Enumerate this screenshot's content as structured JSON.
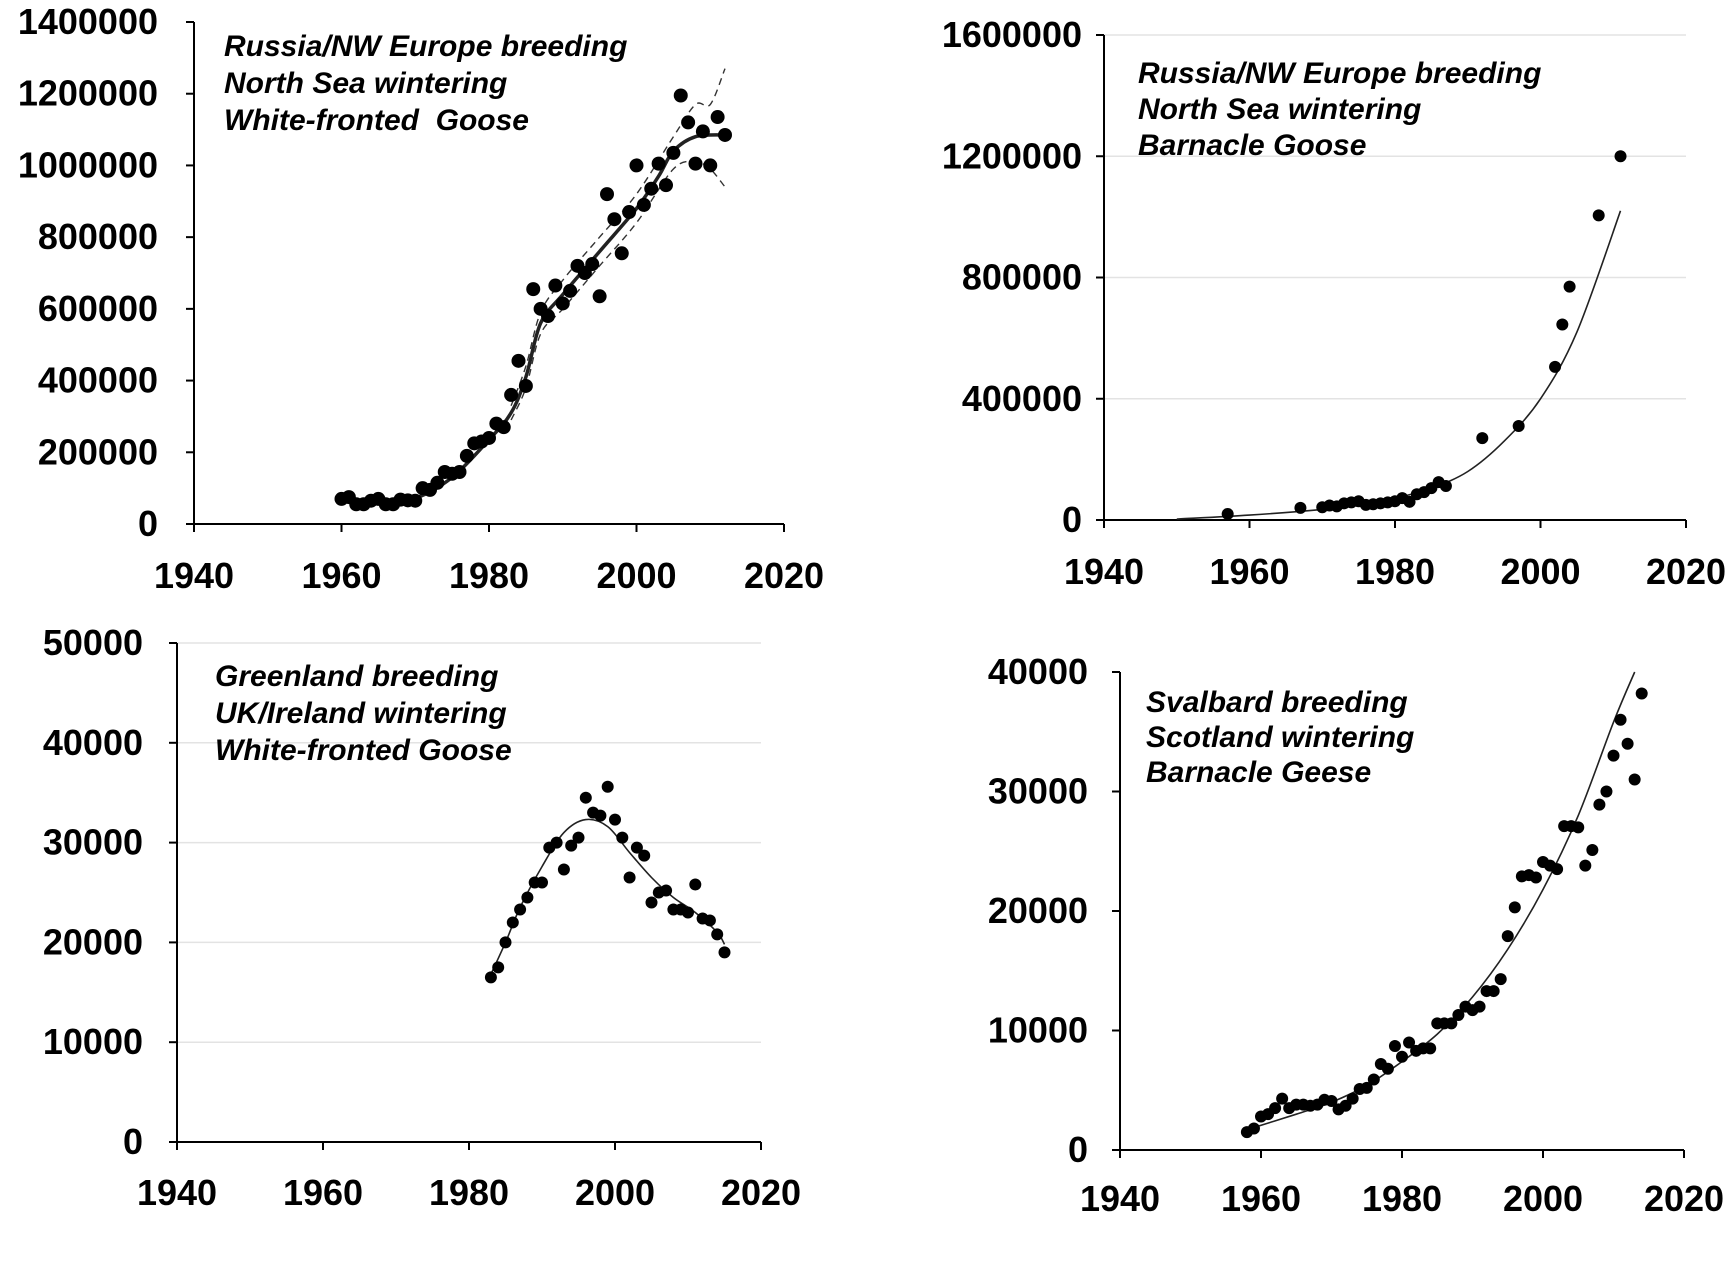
{
  "chart_data": [
    {
      "type": "scatter",
      "title": "",
      "xlabel": "",
      "ylabel": "",
      "xlim": [
        1940,
        2020
      ],
      "ylim": [
        0,
        1400000
      ],
      "x_ticks": [
        "1940",
        "1960",
        "1980",
        "2000",
        "2020"
      ],
      "y_ticks": [
        "0",
        "200000",
        "400000",
        "600000",
        "800000",
        "1000000",
        "1200000",
        "1400000"
      ],
      "grid": false,
      "annotation": [
        "Russia/NW Europe breeding",
        "North Sea wintering",
        "White-fronted  Goose"
      ],
      "series": [
        {
          "kind": "points",
          "points": [
            [
              1960,
              70000
            ],
            [
              1961,
              75000
            ],
            [
              1962,
              55000
            ],
            [
              1963,
              55000
            ],
            [
              1964,
              65000
            ],
            [
              1965,
              70000
            ],
            [
              1966,
              55000
            ],
            [
              1967,
              55000
            ],
            [
              1968,
              68000
            ],
            [
              1969,
              66000
            ],
            [
              1970,
              65000
            ],
            [
              1971,
              100000
            ],
            [
              1972,
              95000
            ],
            [
              1973,
              115000
            ],
            [
              1974,
              145000
            ],
            [
              1975,
              140000
            ],
            [
              1976,
              145000
            ],
            [
              1977,
              190000
            ],
            [
              1978,
              225000
            ],
            [
              1979,
              230000
            ],
            [
              1980,
              240000
            ],
            [
              1981,
              280000
            ],
            [
              1982,
              270000
            ],
            [
              1983,
              360000
            ],
            [
              1984,
              455000
            ],
            [
              1985,
              385000
            ],
            [
              1986,
              655000
            ],
            [
              1987,
              600000
            ],
            [
              1988,
              580000
            ],
            [
              1989,
              665000
            ],
            [
              1990,
              615000
            ],
            [
              1991,
              650000
            ],
            [
              1992,
              720000
            ],
            [
              1993,
              700000
            ],
            [
              1994,
              725000
            ],
            [
              1995,
              635000
            ],
            [
              1996,
              920000
            ],
            [
              1997,
              850000
            ],
            [
              1998,
              755000
            ],
            [
              1999,
              870000
            ],
            [
              2000,
              1000000
            ],
            [
              2001,
              890000
            ],
            [
              2002,
              935000
            ],
            [
              2003,
              1005000
            ],
            [
              2004,
              945000
            ],
            [
              2005,
              1035000
            ],
            [
              2006,
              1195000
            ],
            [
              2007,
              1120000
            ],
            [
              2008,
              1005000
            ],
            [
              2009,
              1095000
            ],
            [
              2010,
              1000000
            ],
            [
              2011,
              1135000
            ],
            [
              2012,
              1085000
            ]
          ]
        },
        {
          "kind": "trend",
          "points": [
            [
              1960,
              62000
            ],
            [
              1965,
              62000
            ],
            [
              1970,
              72000
            ],
            [
              1975,
              130000
            ],
            [
              1980,
              235000
            ],
            [
              1983,
              310000
            ],
            [
              1985,
              410000
            ],
            [
              1987,
              560000
            ],
            [
              1990,
              640000
            ],
            [
              1995,
              760000
            ],
            [
              2000,
              880000
            ],
            [
              2003,
              970000
            ],
            [
              2005,
              1040000
            ],
            [
              2008,
              1080000
            ],
            [
              2012,
              1085000
            ]
          ]
        },
        {
          "kind": "upper-ci",
          "points": [
            [
              1983,
              330000
            ],
            [
              1985,
              440000
            ],
            [
              1987,
              590000
            ],
            [
              1990,
              680000
            ],
            [
              1995,
              800000
            ],
            [
              2000,
              920000
            ],
            [
              2005,
              1080000
            ],
            [
              2008,
              1170000
            ],
            [
              2010,
              1170000
            ],
            [
              2012,
              1270000
            ]
          ]
        },
        {
          "kind": "lower-ci",
          "points": [
            [
              1983,
              290000
            ],
            [
              1985,
              380000
            ],
            [
              1987,
              530000
            ],
            [
              1990,
              600000
            ],
            [
              1995,
              720000
            ],
            [
              2000,
              840000
            ],
            [
              2005,
              990000
            ],
            [
              2008,
              1010000
            ],
            [
              2010,
              990000
            ],
            [
              2012,
              940000
            ]
          ]
        }
      ]
    },
    {
      "type": "scatter",
      "title": "",
      "xlabel": "",
      "ylabel": "",
      "xlim": [
        1940,
        2020
      ],
      "ylim": [
        0,
        1600000
      ],
      "x_ticks": [
        "1940",
        "1960",
        "1980",
        "2000",
        "2020"
      ],
      "y_ticks": [
        "0",
        "400000",
        "800000",
        "1200000",
        "1600000"
      ],
      "grid": true,
      "annotation": [
        "Russia/NW Europe breeding",
        "North Sea wintering",
        "Barnacle Goose"
      ],
      "series": [
        {
          "kind": "points",
          "points": [
            [
              1957,
              20000
            ],
            [
              1967,
              40000
            ],
            [
              1970,
              42000
            ],
            [
              1971,
              48000
            ],
            [
              1972,
              45000
            ],
            [
              1973,
              55000
            ],
            [
              1974,
              58000
            ],
            [
              1975,
              62000
            ],
            [
              1976,
              50000
            ],
            [
              1977,
              52000
            ],
            [
              1978,
              55000
            ],
            [
              1979,
              58000
            ],
            [
              1980,
              62000
            ],
            [
              1981,
              72000
            ],
            [
              1982,
              60000
            ],
            [
              1983,
              85000
            ],
            [
              1984,
              92000
            ],
            [
              1985,
              105000
            ],
            [
              1986,
              125000
            ],
            [
              1987,
              112000
            ],
            [
              1992,
              270000
            ],
            [
              1997,
              310000
            ],
            [
              2002,
              505000
            ],
            [
              2003,
              645000
            ],
            [
              2004,
              770000
            ],
            [
              2008,
              1005000
            ],
            [
              2011,
              1200000
            ]
          ]
        },
        {
          "kind": "trend",
          "points": [
            [
              1950,
              3000
            ],
            [
              1960,
              16000
            ],
            [
              1970,
              35000
            ],
            [
              1975,
              50000
            ],
            [
              1980,
              72000
            ],
            [
              1985,
              105000
            ],
            [
              1990,
              160000
            ],
            [
              1995,
              260000
            ],
            [
              2000,
              400000
            ],
            [
              2005,
              620000
            ],
            [
              2011,
              1020000
            ]
          ]
        }
      ]
    },
    {
      "type": "scatter",
      "title": "",
      "xlabel": "",
      "ylabel": "",
      "xlim": [
        1940,
        2020
      ],
      "ylim": [
        0,
        50000
      ],
      "x_ticks": [
        "1940",
        "1960",
        "1980",
        "2000",
        "2020"
      ],
      "y_ticks": [
        "0",
        "10000",
        "20000",
        "30000",
        "40000",
        "50000"
      ],
      "grid": true,
      "annotation": [
        "Greenland breeding",
        "UK/Ireland wintering",
        "White-fronted Goose"
      ],
      "series": [
        {
          "kind": "points",
          "points": [
            [
              1983,
              16500
            ],
            [
              1984,
              17500
            ],
            [
              1985,
              20000
            ],
            [
              1986,
              22000
            ],
            [
              1987,
              23300
            ],
            [
              1988,
              24500
            ],
            [
              1989,
              26000
            ],
            [
              1990,
              26000
            ],
            [
              1991,
              29500
            ],
            [
              1992,
              30000
            ],
            [
              1993,
              27300
            ],
            [
              1994,
              29700
            ],
            [
              1995,
              30500
            ],
            [
              1996,
              34500
            ],
            [
              1997,
              33000
            ],
            [
              1998,
              32700
            ],
            [
              1999,
              35600
            ],
            [
              2000,
              32300
            ],
            [
              2001,
              30500
            ],
            [
              2002,
              26500
            ],
            [
              2003,
              29500
            ],
            [
              2004,
              28700
            ],
            [
              2005,
              24000
            ],
            [
              2006,
              25000
            ],
            [
              2007,
              25200
            ],
            [
              2008,
              23300
            ],
            [
              2009,
              23300
            ],
            [
              2010,
              23000
            ],
            [
              2011,
              25800
            ],
            [
              2012,
              22400
            ],
            [
              2013,
              22200
            ],
            [
              2014,
              20800
            ],
            [
              2015,
              19000
            ]
          ]
        },
        {
          "kind": "trend",
          "points": [
            [
              1983,
              16800
            ],
            [
              1985,
              20000
            ],
            [
              1987,
              23500
            ],
            [
              1990,
              27600
            ],
            [
              1993,
              31000
            ],
            [
              1996,
              32300
            ],
            [
              1999,
              31600
            ],
            [
              2002,
              29000
            ],
            [
              2005,
              26500
            ],
            [
              2008,
              24500
            ],
            [
              2011,
              23000
            ],
            [
              2014,
              21000
            ],
            [
              2015,
              19800
            ]
          ]
        }
      ]
    },
    {
      "type": "scatter",
      "title": "",
      "xlabel": "",
      "ylabel": "",
      "xlim": [
        1940,
        2020
      ],
      "ylim": [
        0,
        40000
      ],
      "x_ticks": [
        "1940",
        "1960",
        "1980",
        "2000",
        "2020"
      ],
      "y_ticks": [
        "0",
        "10000",
        "20000",
        "30000",
        "40000"
      ],
      "grid": false,
      "annotation": [
        "Svalbard breeding",
        "Scotland wintering",
        "Barnacle Geese"
      ],
      "series": [
        {
          "kind": "points",
          "points": [
            [
              1958,
              1500
            ],
            [
              1959,
              1800
            ],
            [
              1960,
              2800
            ],
            [
              1961,
              3000
            ],
            [
              1962,
              3500
            ],
            [
              1963,
              4300
            ],
            [
              1964,
              3500
            ],
            [
              1965,
              3800
            ],
            [
              1966,
              3800
            ],
            [
              1967,
              3700
            ],
            [
              1968,
              3800
            ],
            [
              1969,
              4200
            ],
            [
              1970,
              4100
            ],
            [
              1971,
              3400
            ],
            [
              1972,
              3700
            ],
            [
              1973,
              4300
            ],
            [
              1974,
              5100
            ],
            [
              1975,
              5200
            ],
            [
              1976,
              5900
            ],
            [
              1977,
              7200
            ],
            [
              1978,
              6800
            ],
            [
              1979,
              8700
            ],
            [
              1980,
              7800
            ],
            [
              1981,
              9000
            ],
            [
              1982,
              8300
            ],
            [
              1983,
              8500
            ],
            [
              1984,
              8500
            ],
            [
              1985,
              10600
            ],
            [
              1986,
              10600
            ],
            [
              1987,
              10600
            ],
            [
              1988,
              11300
            ],
            [
              1989,
              12000
            ],
            [
              1990,
              11700
            ],
            [
              1991,
              12000
            ],
            [
              1992,
              13300
            ],
            [
              1993,
              13300
            ],
            [
              1994,
              14300
            ],
            [
              1995,
              17900
            ],
            [
              1996,
              20300
            ],
            [
              1997,
              22900
            ],
            [
              1998,
              23000
            ],
            [
              1999,
              22800
            ],
            [
              2000,
              24100
            ],
            [
              2001,
              23800
            ],
            [
              2002,
              23500
            ],
            [
              2003,
              27100
            ],
            [
              2004,
              27100
            ],
            [
              2005,
              27000
            ],
            [
              2006,
              23800
            ],
            [
              2007,
              25100
            ],
            [
              2008,
              28900
            ],
            [
              2009,
              30000
            ],
            [
              2010,
              33000
            ],
            [
              2011,
              36000
            ],
            [
              2012,
              34000
            ],
            [
              2013,
              31000
            ],
            [
              2014,
              38200
            ]
          ]
        },
        {
          "kind": "trend",
          "points": [
            [
              1958,
              1700
            ],
            [
              1965,
              3000
            ],
            [
              1970,
              4000
            ],
            [
              1975,
              5400
            ],
            [
              1980,
              7400
            ],
            [
              1985,
              9700
            ],
            [
              1990,
              12800
            ],
            [
              1995,
              16800
            ],
            [
              2000,
              21800
            ],
            [
              2005,
              28000
            ],
            [
              2010,
              35800
            ],
            [
              2013,
              40000
            ]
          ]
        }
      ]
    }
  ]
}
